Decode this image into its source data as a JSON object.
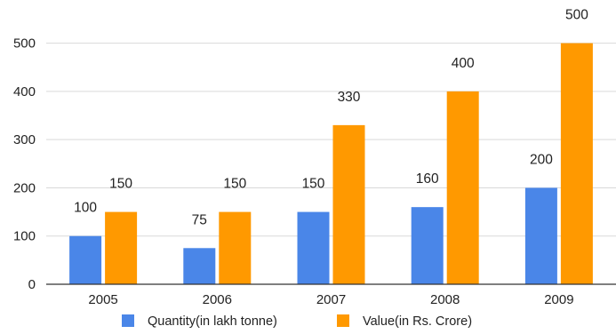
{
  "chart_data": {
    "type": "bar",
    "categories": [
      "2005",
      "2006",
      "2007",
      "2008",
      "2009"
    ],
    "series": [
      {
        "name": "Quantity(in lakh tonne)",
        "values": [
          100,
          75,
          150,
          160,
          200
        ],
        "color": "#4A86E8"
      },
      {
        "name": "Value(in Rs. Crore)",
        "values": [
          150,
          150,
          330,
          400,
          500
        ],
        "color": "#FF9900"
      }
    ],
    "y_ticks": [
      "0",
      "100",
      "200",
      "300",
      "400",
      "500"
    ],
    "ylim": [
      0,
      500
    ],
    "grid": true,
    "legend_position": "bottom",
    "data_labels": true
  }
}
